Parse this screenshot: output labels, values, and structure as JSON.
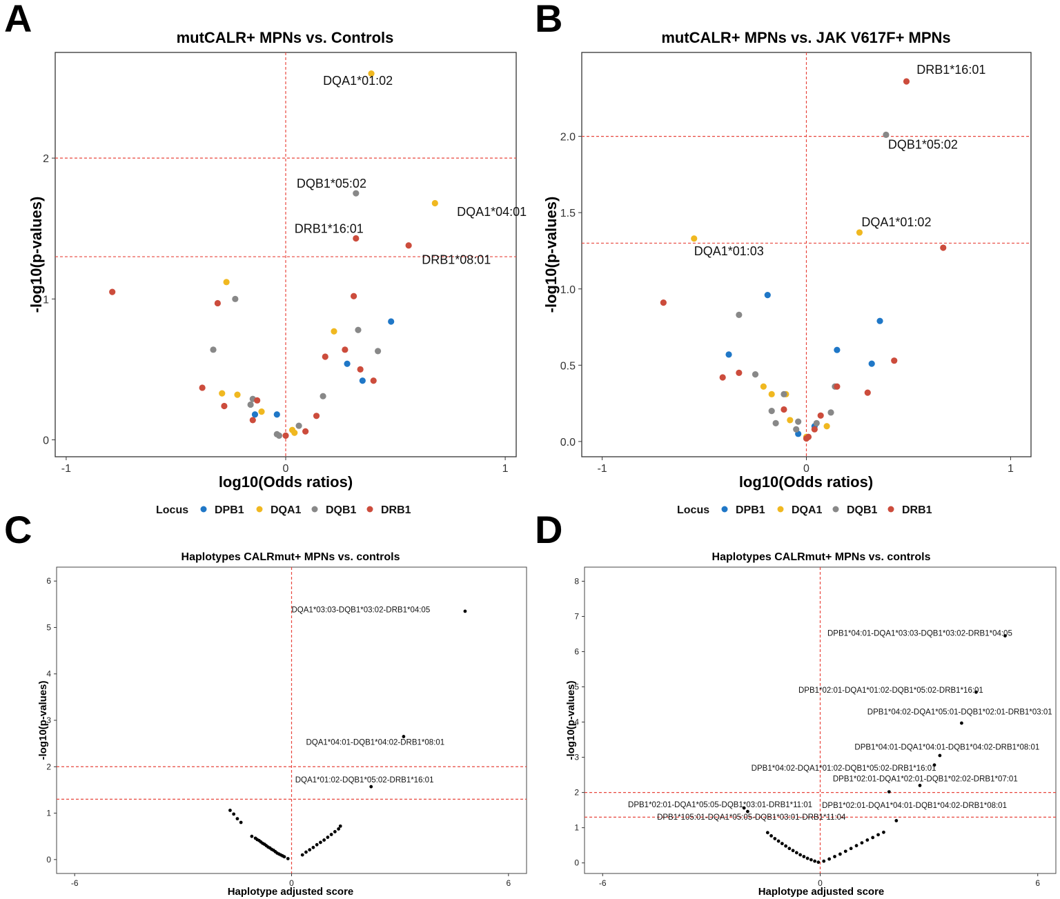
{
  "colors": {
    "DPB1": "#1f77c7",
    "DQA1": "#f0b820",
    "DQB1": "#888888",
    "DRB1": "#cc4c3c",
    "threshold": "#e8453c",
    "hap": "#000000"
  },
  "legend": {
    "title": "Locus",
    "items": [
      "DPB1",
      "DQA1",
      "DQB1",
      "DRB1"
    ]
  },
  "chart_data": [
    {
      "panel": "A",
      "type": "scatter",
      "title": "mutCALR+ MPNs vs. Controls",
      "xlabel": "log10(Odds ratios)",
      "ylabel": "-log10(p-values)",
      "xlim": [
        -1.05,
        1.05
      ],
      "ylim": [
        -0.12,
        2.75
      ],
      "xticks": [
        -1,
        0,
        1
      ],
      "yticks": [
        0,
        1,
        2
      ],
      "hlines": [
        1.3,
        2.0
      ],
      "vlines": [
        0
      ],
      "series": [
        {
          "name": "DPB1",
          "x": [
            0.48,
            0.28,
            0.35,
            -0.14,
            -0.04
          ],
          "y": [
            0.84,
            0.54,
            0.42,
            0.18,
            0.18
          ]
        },
        {
          "name": "DQA1",
          "x": [
            0.39,
            0.68,
            -0.27,
            0.22,
            -0.29,
            -0.22,
            -0.11,
            0.03,
            0.04
          ],
          "y": [
            2.6,
            1.68,
            1.12,
            0.77,
            0.33,
            0.32,
            0.2,
            0.07,
            0.05
          ]
        },
        {
          "name": "DQB1",
          "x": [
            0.32,
            -0.23,
            0.33,
            0.42,
            0.17,
            -0.33,
            -0.16,
            -0.15,
            0.06,
            -0.04,
            -0.03
          ],
          "y": [
            1.75,
            1.0,
            0.78,
            0.63,
            0.31,
            0.64,
            0.25,
            0.29,
            0.1,
            0.04,
            0.03
          ],
          "labels": [
            "DQB1*05:02"
          ]
        },
        {
          "name": "DRB1",
          "x": [
            -0.79,
            0.32,
            0.56,
            0.31,
            -0.31,
            0.18,
            0.27,
            0.34,
            0.4,
            -0.38,
            -0.13,
            -0.28,
            -0.15,
            0.14,
            0.09,
            0.0
          ],
          "y": [
            1.05,
            1.43,
            1.38,
            1.02,
            0.97,
            0.59,
            0.64,
            0.5,
            0.42,
            0.37,
            0.28,
            0.24,
            0.14,
            0.17,
            0.06,
            0.03
          ]
        }
      ],
      "annotations": [
        {
          "text": "DQA1*01:02",
          "x": 0.17,
          "y": 2.52
        },
        {
          "text": "DQB1*05:02",
          "x": 0.05,
          "y": 1.79
        },
        {
          "text": "DQA1*04:01",
          "x": 0.78,
          "y": 1.59
        },
        {
          "text": "DRB1*16:01",
          "x": 0.04,
          "y": 1.47
        },
        {
          "text": "DRB1*08:01",
          "x": 0.62,
          "y": 1.25
        }
      ]
    },
    {
      "panel": "B",
      "type": "scatter",
      "title": "mutCALR+ MPNs vs. JAK V617F+ MPNs",
      "xlabel": "log10(Odds ratios)",
      "ylabel": "-log10(p-values)",
      "xlim": [
        -1.1,
        1.1
      ],
      "ylim": [
        -0.1,
        2.55
      ],
      "xticks": [
        -1,
        0,
        1
      ],
      "yticks": [
        0.0,
        0.5,
        1.0,
        1.5,
        2.0
      ],
      "yticklabels": [
        "0.0",
        "0.5",
        "1.0",
        "1.5",
        "2.0"
      ],
      "hlines": [
        1.3,
        2.0
      ],
      "vlines": [
        0
      ],
      "series": [
        {
          "name": "DPB1",
          "x": [
            -0.19,
            0.36,
            -0.38,
            0.15,
            0.32,
            -0.04,
            0.04
          ],
          "y": [
            0.96,
            0.79,
            0.57,
            0.6,
            0.51,
            0.05,
            0.1
          ]
        },
        {
          "name": "DQA1",
          "x": [
            0.26,
            -0.55,
            -0.21,
            -0.17,
            -0.1,
            -0.08,
            0.1,
            0.0
          ],
          "y": [
            1.37,
            1.33,
            0.36,
            0.31,
            0.31,
            0.14,
            0.1,
            0.03
          ]
        },
        {
          "name": "DQB1",
          "x": [
            0.39,
            -0.33,
            -0.25,
            -0.11,
            0.14,
            -0.17,
            0.12,
            -0.15,
            -0.04,
            -0.05,
            0.05
          ],
          "y": [
            2.01,
            0.83,
            0.44,
            0.31,
            0.36,
            0.2,
            0.19,
            0.12,
            0.13,
            0.08,
            0.12
          ]
        },
        {
          "name": "DRB1",
          "x": [
            0.49,
            0.67,
            -0.7,
            0.43,
            -0.41,
            -0.33,
            0.15,
            0.3,
            -0.11,
            0.07,
            0.0,
            0.01,
            0.04
          ],
          "y": [
            2.36,
            1.27,
            0.91,
            0.53,
            0.42,
            0.45,
            0.36,
            0.32,
            0.21,
            0.17,
            0.02,
            0.03,
            0.08
          ]
        }
      ],
      "annotations": [
        {
          "text": "DRB1*16:01",
          "x": 0.54,
          "y": 2.41
        },
        {
          "text": "DQB1*05:02",
          "x": 0.4,
          "y": 1.92
        },
        {
          "text": "DQA1*01:02",
          "x": 0.27,
          "y": 1.41
        },
        {
          "text": "DQA1*01:03",
          "x": -0.55,
          "y": 1.22
        }
      ]
    },
    {
      "panel": "C",
      "type": "scatter",
      "title": "Haplotypes CALRmut+ MPNs vs. controls",
      "xlabel": "Haplotype adjusted score",
      "ylabel": "-log10(p-values)",
      "xlim": [
        -6.5,
        6.5
      ],
      "ylim": [
        -0.3,
        6.3
      ],
      "xticks": [
        -6,
        0,
        6
      ],
      "yticks": [
        0,
        1,
        2,
        3,
        4,
        5,
        6
      ],
      "hlines": [
        1.3,
        2.0
      ],
      "vlines": [
        0
      ],
      "points": {
        "x": [
          4.8,
          3.1,
          2.2,
          -1.7,
          -1.6,
          -1.5,
          -1.4,
          -1.1,
          -1.0,
          -0.95,
          -0.9,
          -0.85,
          -0.8,
          -0.75,
          -0.7,
          -0.65,
          -0.6,
          -0.55,
          -0.5,
          -0.45,
          -0.4,
          -0.35,
          -0.3,
          -0.25,
          -0.2,
          -0.1,
          0.3,
          0.4,
          0.5,
          0.6,
          0.7,
          0.8,
          0.9,
          1.0,
          1.1,
          1.2,
          1.3,
          1.35
        ],
        "y": [
          5.35,
          2.65,
          1.57,
          1.06,
          0.98,
          0.88,
          0.8,
          0.5,
          0.46,
          0.43,
          0.41,
          0.38,
          0.35,
          0.33,
          0.3,
          0.27,
          0.25,
          0.22,
          0.2,
          0.17,
          0.14,
          0.12,
          0.1,
          0.08,
          0.06,
          0.02,
          0.1,
          0.16,
          0.21,
          0.26,
          0.32,
          0.37,
          0.42,
          0.48,
          0.54,
          0.6,
          0.66,
          0.72
        ]
      },
      "annotations": [
        {
          "text": "DQA1*03:03-DQB1*03:02-DRB1*04:05",
          "x": 0.0,
          "y": 5.33
        },
        {
          "text": "DQA1*04:01-DQB1*04:02-DRB1*08:01",
          "x": 0.4,
          "y": 2.47
        },
        {
          "text": "DQA1*01:02-DQB1*05:02-DRB1*16:01",
          "x": 0.1,
          "y": 1.66
        }
      ]
    },
    {
      "panel": "D",
      "type": "scatter",
      "title": "Haplotypes CALRmut+ MPNs vs. controls",
      "xlabel": "Haplotype adjusted score",
      "ylabel": "-log10(p-values)",
      "xlim": [
        -6.5,
        6.5
      ],
      "ylim": [
        -0.3,
        8.4
      ],
      "xticks": [
        -6,
        0,
        6
      ],
      "yticks": [
        0,
        1,
        2,
        3,
        4,
        5,
        6,
        7,
        8
      ],
      "hlines": [
        1.3,
        2.0
      ],
      "vlines": [
        0
      ],
      "points": {
        "x": [
          5.1,
          4.3,
          3.9,
          3.3,
          3.15,
          2.75,
          2.1,
          -2.1,
          -2.0,
          1.9,
          -1.45,
          -1.35,
          -1.25,
          -1.15,
          -1.05,
          -0.95,
          -0.85,
          -0.75,
          -0.65,
          -0.55,
          -0.45,
          -0.35,
          -0.25,
          -0.15,
          -0.05,
          0.1,
          0.25,
          0.4,
          0.55,
          0.7,
          0.85,
          1.0,
          1.15,
          1.3,
          1.45,
          1.6,
          1.75
        ],
        "y": [
          6.45,
          4.85,
          3.97,
          3.05,
          2.78,
          2.2,
          1.2,
          1.56,
          1.46,
          2.02,
          0.86,
          0.77,
          0.69,
          0.62,
          0.55,
          0.48,
          0.41,
          0.35,
          0.29,
          0.23,
          0.18,
          0.13,
          0.09,
          0.05,
          0.02,
          0.05,
          0.11,
          0.18,
          0.25,
          0.33,
          0.41,
          0.49,
          0.57,
          0.65,
          0.72,
          0.8,
          0.87
        ]
      },
      "annotations": [
        {
          "text": "DPB1*04:01-DQA1*03:03-DQB1*03:02-DRB1*04:05",
          "x": 0.2,
          "y": 6.45
        },
        {
          "text": "DPB1*02:01-DQA1*01:02-DQB1*05:02-DRB1*16:01",
          "x": -0.6,
          "y": 4.83
        },
        {
          "text": "DPB1*04:02-DQA1*05:01-DQB1*02:01-DRB1*03:01",
          "x": 1.3,
          "y": 4.22
        },
        {
          "text": "DPB1*04:01-DQA1*04:01-DQB1*04:02-DRB1*08:01",
          "x": 0.95,
          "y": 3.22
        },
        {
          "text": "DPB1*04:02-DQA1*01:02-DQB1*05:02-DRB1*16:01",
          "x": -1.9,
          "y": 2.62
        },
        {
          "text": "DPB1*02:01-DQA1*02:01-DQB1*02:02-DRB1*07:01",
          "x": 0.35,
          "y": 2.32
        },
        {
          "text": "DPB1*02:01-DQA1*05:05-DQB1*03:01-DRB1*11:01",
          "x": -5.3,
          "y": 1.58
        },
        {
          "text": "DPB1*02:01-DQA1*04:01-DQB1*04:02-DRB1*08:01",
          "x": 0.05,
          "y": 1.56
        },
        {
          "text": "DPB1*105:01-DQA1*05:05-DQB1*03:01-DRB1*11:04",
          "x": -4.5,
          "y": 1.23
        }
      ]
    }
  ]
}
